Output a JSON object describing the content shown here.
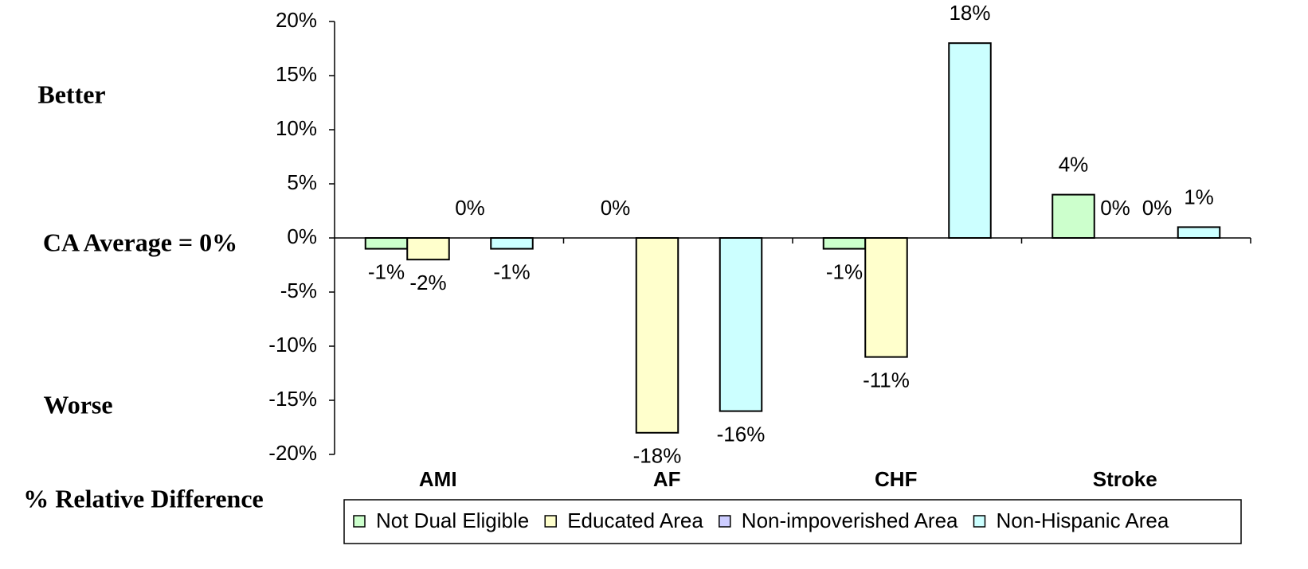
{
  "chart_data": {
    "type": "bar",
    "side_labels": [
      "Better",
      "CA Average = 0%",
      "Worse",
      "% Relative Difference"
    ],
    "categories": [
      "AMI",
      "AF",
      "CHF",
      "Stroke"
    ],
    "series": [
      {
        "name": "Not Dual Eligible",
        "color": "#ccffcc",
        "values": [
          -1,
          0,
          -1,
          4
        ],
        "value_labels": [
          "-1%",
          "0%",
          "-1%",
          "4%"
        ]
      },
      {
        "name": "Educated Area",
        "color": "#ffffcc",
        "values": [
          -2,
          -18,
          -11,
          0
        ],
        "value_labels": [
          "-2%",
          "-18%",
          "-11%",
          "0%"
        ]
      },
      {
        "name": "Non-impoverished Area",
        "color": "#ccccff",
        "values": [
          0,
          null,
          null,
          0
        ],
        "value_labels": [
          "0%",
          null,
          null,
          "0%"
        ]
      },
      {
        "name": "Non-Hispanic Area",
        "color": "#ccffff",
        "values": [
          -1,
          -16,
          18,
          1
        ],
        "value_labels": [
          "-1%",
          "-16%",
          "18%",
          "1%"
        ]
      }
    ],
    "ylim": [
      -20,
      20
    ],
    "yticks": [
      {
        "value": -20,
        "label": "-20%"
      },
      {
        "value": -15,
        "label": "-15%"
      },
      {
        "value": -10,
        "label": "-10%"
      },
      {
        "value": -5,
        "label": "-5%"
      },
      {
        "value": 0,
        "label": "0%"
      },
      {
        "value": 5,
        "label": "5%"
      },
      {
        "value": 10,
        "label": "10%"
      },
      {
        "value": 15,
        "label": "15%"
      },
      {
        "value": 20,
        "label": "20%"
      }
    ],
    "legend": "bottom",
    "grid": false
  }
}
